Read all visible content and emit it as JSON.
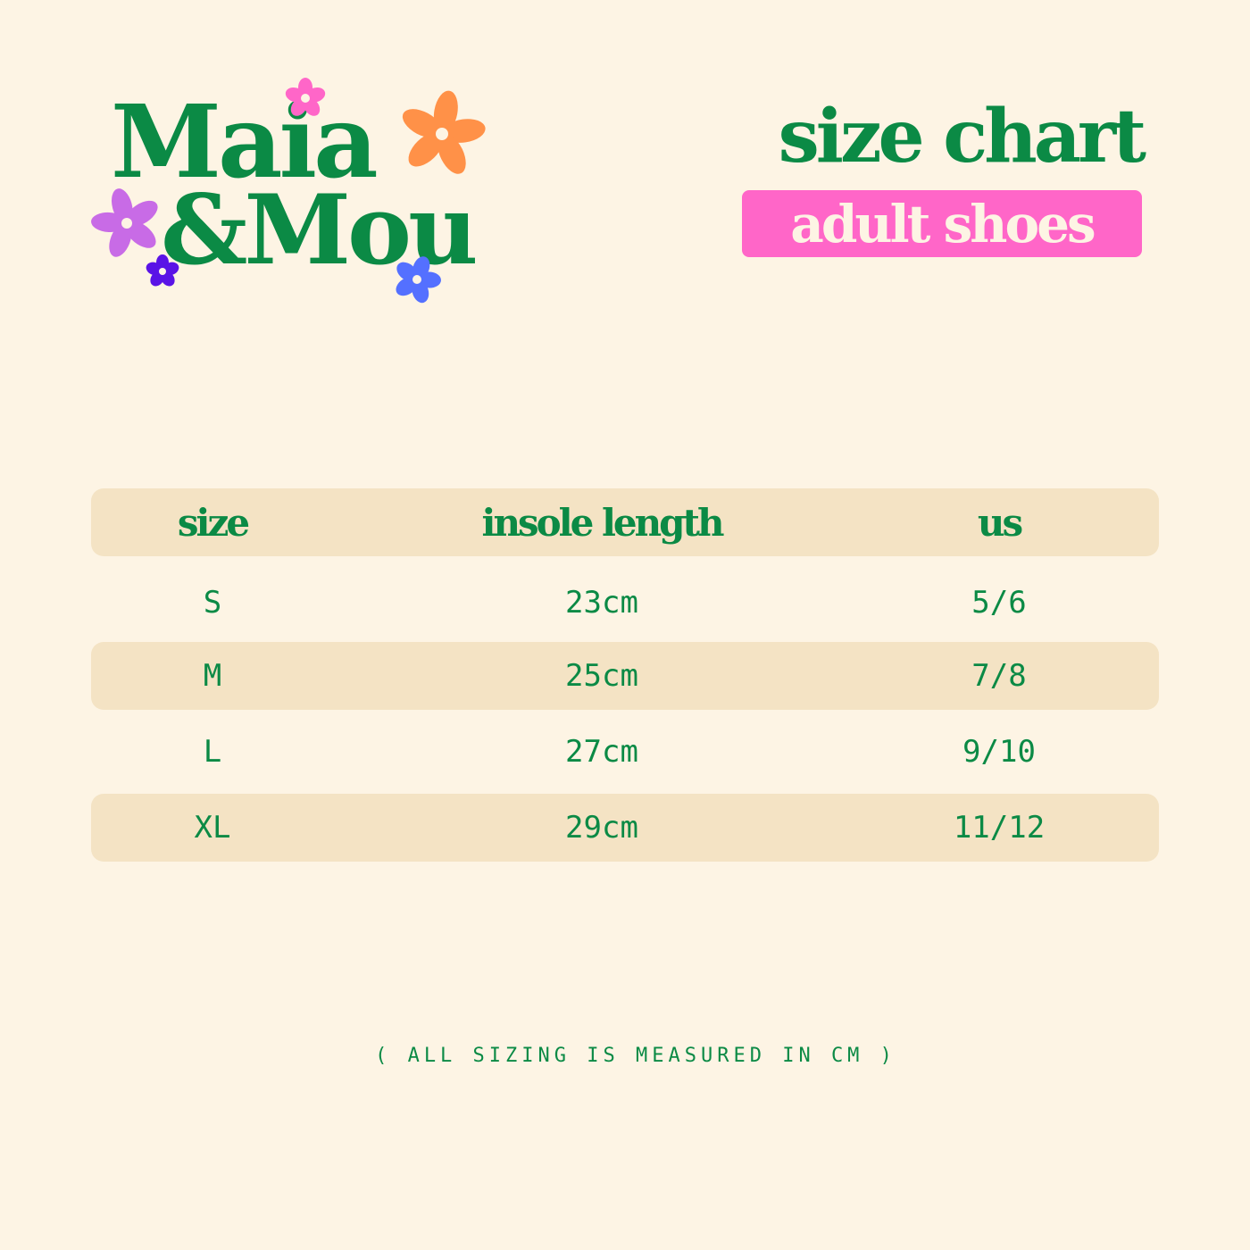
{
  "logo": {
    "line1": "Maia",
    "line2": "&Mou"
  },
  "header": {
    "title": "size chart",
    "subtitle": "adult shoes"
  },
  "colors": {
    "background": "#fdf4e4",
    "green": "#0b8a45",
    "pink": "#ff66c8",
    "band": "#f4e3c4",
    "flower_orange": "#ff9148",
    "flower_purple": "#c86be6",
    "flower_violet": "#5a13e6",
    "flower_blue": "#5470ff"
  },
  "table": {
    "columns": [
      "size",
      "insole length",
      "us"
    ],
    "rows": [
      [
        "S",
        "23cm",
        "5/6"
      ],
      [
        "M",
        "25cm",
        "7/8"
      ],
      [
        "L",
        "27cm",
        "9/10"
      ],
      [
        "XL",
        "29cm",
        "11/12"
      ]
    ]
  },
  "footer": {
    "note": "( ALL SIZING IS MEASURED IN CM )"
  }
}
